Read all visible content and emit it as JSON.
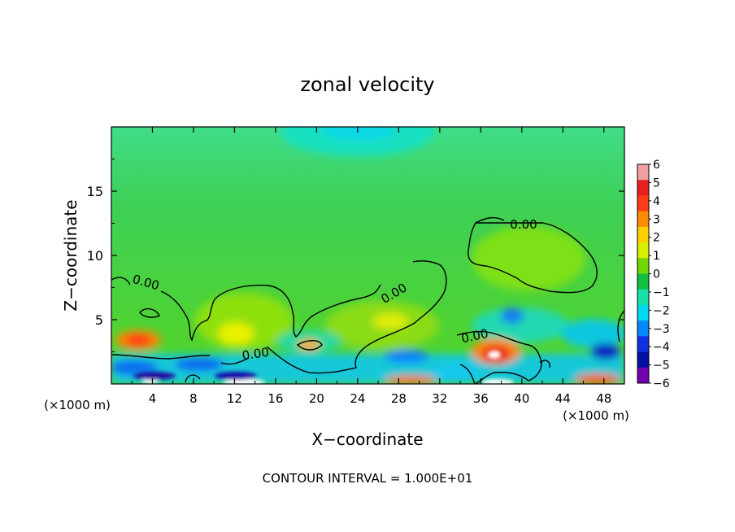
{
  "chart_data": {
    "type": "heatmap",
    "title": "zonal velocity",
    "xlabel": "X−coordinate",
    "ylabel": "Z−coordinate",
    "x_unit_left": "(×1000 m)",
    "x_unit_right": "(×1000 m)",
    "xlim": [
      0,
      50
    ],
    "ylim": [
      0,
      20
    ],
    "x_ticks": [
      4,
      8,
      12,
      16,
      20,
      24,
      28,
      32,
      36,
      40,
      44,
      48
    ],
    "y_ticks": [
      5,
      10,
      15
    ],
    "colorbar": {
      "range": [
        -6,
        6
      ],
      "labels": [
        "6",
        "5",
        "4",
        "3",
        "2",
        "1",
        "0",
        "−1",
        "−2",
        "−3",
        "−4",
        "−5",
        "−6"
      ],
      "colors": [
        "#f0a0a0",
        "#e82020",
        "#ff3c18",
        "#ff8c00",
        "#ffd000",
        "#d8f000",
        "#6cd800",
        "#10c040",
        "#18e0a8",
        "#00d8f0",
        "#0088ff",
        "#1030e0",
        "#0010a0",
        "#7000b0"
      ]
    },
    "contour_labels": [
      "0.00",
      "0.00",
      "0.00",
      "0.00",
      "0.00"
    ],
    "field_note": "CONTOUR INTERVAL = 1.000E+01"
  }
}
